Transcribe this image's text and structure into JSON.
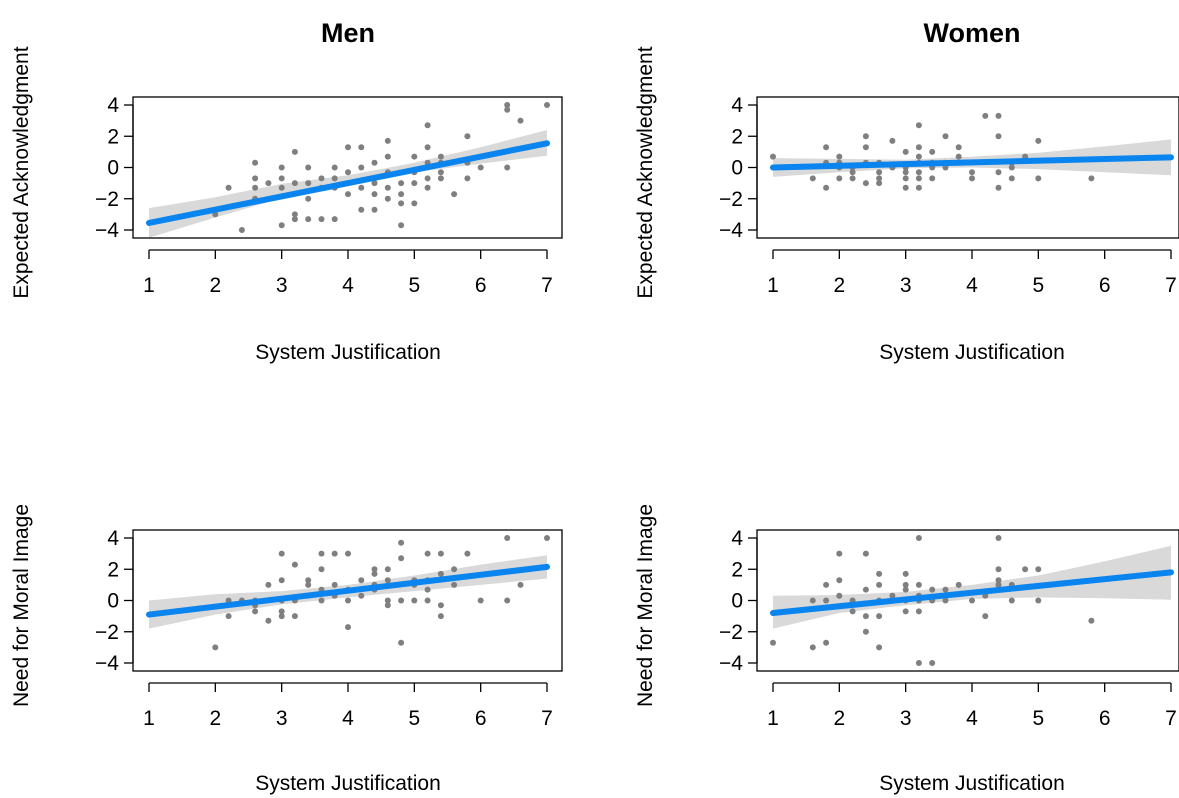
{
  "chart_data": [
    {
      "type": "scatter",
      "title": "Men",
      "xlabel": "System Justification",
      "ylabel": "Expected Acknowledgment",
      "xlim": [
        1,
        7
      ],
      "ylim": [
        -4,
        4
      ],
      "xticks": [
        1,
        2,
        3,
        4,
        5,
        6,
        7
      ],
      "yticks": [
        -4,
        -2,
        0,
        2,
        4
      ],
      "fit": {
        "x": [
          1,
          7
        ],
        "y": [
          -3.55,
          1.55
        ]
      },
      "band": {
        "x": [
          1,
          2,
          3,
          4,
          5,
          6,
          7
        ],
        "lower": [
          -4.5,
          -3.2,
          -1.95,
          -1.05,
          -0.3,
          0.25,
          0.75
        ],
        "upper": [
          -2.6,
          -1.9,
          -1.05,
          -0.5,
          0.3,
          1.3,
          2.4
        ]
      },
      "points": [
        [
          2,
          -3
        ],
        [
          2.2,
          -1.3
        ],
        [
          2.4,
          -4
        ],
        [
          2.6,
          -1.3
        ],
        [
          2.6,
          -2
        ],
        [
          2.6,
          -0.7
        ],
        [
          2.6,
          0.3
        ],
        [
          2.8,
          -1
        ],
        [
          3,
          -1.3
        ],
        [
          3,
          -0.7
        ],
        [
          3,
          0
        ],
        [
          3,
          -3.7
        ],
        [
          3.2,
          -3
        ],
        [
          3.2,
          -3.3
        ],
        [
          3.2,
          -1
        ],
        [
          3.2,
          1
        ],
        [
          3.4,
          -2
        ],
        [
          3.4,
          -1
        ],
        [
          3.4,
          0
        ],
        [
          3.4,
          -3.3
        ],
        [
          3.6,
          -0.7
        ],
        [
          3.6,
          -1.3
        ],
        [
          3.6,
          -3.3
        ],
        [
          3.8,
          -1.3
        ],
        [
          3.8,
          -0.7
        ],
        [
          3.8,
          0
        ],
        [
          3.8,
          -3.3
        ],
        [
          4,
          -1
        ],
        [
          4,
          -1.7
        ],
        [
          4,
          -0.3
        ],
        [
          4,
          1.3
        ],
        [
          4.2,
          -1.3
        ],
        [
          4.2,
          -2.7
        ],
        [
          4.2,
          0
        ],
        [
          4.2,
          1.3
        ],
        [
          4.4,
          -1
        ],
        [
          4.4,
          -0.7
        ],
        [
          4.4,
          -2.7
        ],
        [
          4.4,
          -1.7
        ],
        [
          4.4,
          0.3
        ],
        [
          4.6,
          -1.3
        ],
        [
          4.6,
          -2
        ],
        [
          4.6,
          -0.3
        ],
        [
          4.6,
          0.7
        ],
        [
          4.6,
          1.7
        ],
        [
          4.8,
          -1
        ],
        [
          4.8,
          -1.7
        ],
        [
          4.8,
          -2.3
        ],
        [
          4.8,
          -3.7
        ],
        [
          5,
          -0.3
        ],
        [
          5,
          -1
        ],
        [
          5,
          -2.3
        ],
        [
          5,
          0.7
        ],
        [
          5.2,
          -1.3
        ],
        [
          5.2,
          -0.7
        ],
        [
          5.2,
          0.3
        ],
        [
          5.2,
          1.3
        ],
        [
          5.2,
          2.7
        ],
        [
          5.4,
          0.3
        ],
        [
          5.4,
          0.7
        ],
        [
          5.4,
          -0.3
        ],
        [
          5.4,
          -0.7
        ],
        [
          5.6,
          -1.7
        ],
        [
          5.8,
          0.3
        ],
        [
          5.8,
          2
        ],
        [
          5.8,
          -0.7
        ],
        [
          6,
          0
        ],
        [
          6.4,
          4
        ],
        [
          6.4,
          3.7
        ],
        [
          6.4,
          0
        ],
        [
          6.6,
          3
        ],
        [
          7,
          4
        ]
      ]
    },
    {
      "type": "scatter",
      "title": "Women",
      "xlabel": "System Justification",
      "ylabel": "Expected Acknowledgment",
      "xlim": [
        1,
        7
      ],
      "ylim": [
        -4,
        4
      ],
      "xticks": [
        1,
        2,
        3,
        4,
        5,
        6,
        7
      ],
      "yticks": [
        -4,
        -2,
        0,
        2,
        4
      ],
      "fit": {
        "x": [
          1,
          7
        ],
        "y": [
          0.0,
          0.65
        ]
      },
      "band": {
        "x": [
          1,
          2,
          3,
          4,
          5,
          6,
          7
        ],
        "lower": [
          -0.6,
          -0.3,
          -0.05,
          0.0,
          -0.1,
          -0.3,
          -0.5
        ],
        "upper": [
          0.6,
          0.55,
          0.5,
          0.7,
          0.95,
          1.35,
          1.8
        ]
      },
      "points": [
        [
          1,
          0.7
        ],
        [
          1.6,
          -0.7
        ],
        [
          1.8,
          0.3
        ],
        [
          1.8,
          -1.3
        ],
        [
          1.8,
          1.3
        ],
        [
          2,
          0
        ],
        [
          2,
          -0.7
        ],
        [
          2,
          0.3
        ],
        [
          2,
          0.7
        ],
        [
          2.2,
          -0.3
        ],
        [
          2.2,
          -0.7
        ],
        [
          2.2,
          0
        ],
        [
          2.4,
          -1
        ],
        [
          2.4,
          0.3
        ],
        [
          2.4,
          1.3
        ],
        [
          2.4,
          2
        ],
        [
          2.6,
          -1
        ],
        [
          2.6,
          -0.3
        ],
        [
          2.6,
          0.3
        ],
        [
          2.6,
          -0.7
        ],
        [
          2.8,
          0
        ],
        [
          2.8,
          1.7
        ],
        [
          3,
          0
        ],
        [
          3,
          1
        ],
        [
          3,
          -0.3
        ],
        [
          3,
          -0.7
        ],
        [
          3,
          -1.3
        ],
        [
          3.2,
          0.3
        ],
        [
          3.2,
          0.7
        ],
        [
          3.2,
          1.3
        ],
        [
          3.2,
          -0.3
        ],
        [
          3.2,
          -1.3
        ],
        [
          3.2,
          2.7
        ],
        [
          3.2,
          -0.7
        ],
        [
          3.4,
          0
        ],
        [
          3.4,
          0.3
        ],
        [
          3.4,
          -0.7
        ],
        [
          3.4,
          1
        ],
        [
          3.6,
          2
        ],
        [
          3.6,
          0.3
        ],
        [
          3.6,
          0
        ],
        [
          3.8,
          0.7
        ],
        [
          3.8,
          1.3
        ],
        [
          4,
          -0.3
        ],
        [
          4,
          -0.7
        ],
        [
          4.2,
          3.3
        ],
        [
          4.4,
          3.3
        ],
        [
          4.4,
          2
        ],
        [
          4.4,
          -0.3
        ],
        [
          4.4,
          -1.3
        ],
        [
          4.6,
          0
        ],
        [
          4.6,
          -0.7
        ],
        [
          4.6,
          0.3
        ],
        [
          4.8,
          0.7
        ],
        [
          5,
          1.7
        ],
        [
          5,
          -0.7
        ],
        [
          5.8,
          -0.7
        ]
      ]
    },
    {
      "type": "scatter",
      "title": "",
      "xlabel": "System Justification",
      "ylabel": "Need for Moral Image",
      "xlim": [
        1,
        7
      ],
      "ylim": [
        -4,
        4
      ],
      "xticks": [
        1,
        2,
        3,
        4,
        5,
        6,
        7
      ],
      "yticks": [
        -4,
        -2,
        0,
        2,
        4
      ],
      "fit": {
        "x": [
          1,
          7
        ],
        "y": [
          -0.9,
          2.15
        ]
      },
      "band": {
        "x": [
          1,
          2,
          3,
          4,
          5,
          6,
          7
        ],
        "lower": [
          -1.8,
          -0.9,
          -0.25,
          0.2,
          0.6,
          1.0,
          1.4
        ],
        "upper": [
          0.0,
          0.4,
          0.6,
          1.0,
          1.6,
          2.3,
          2.9
        ]
      },
      "points": [
        [
          2,
          -3
        ],
        [
          2.2,
          0
        ],
        [
          2.2,
          -1
        ],
        [
          2.4,
          0
        ],
        [
          2.6,
          0
        ],
        [
          2.6,
          -0.3
        ],
        [
          2.6,
          -0.7
        ],
        [
          2.8,
          -1.3
        ],
        [
          2.8,
          1
        ],
        [
          3,
          0
        ],
        [
          3,
          -0.7
        ],
        [
          3,
          -1
        ],
        [
          3,
          1.3
        ],
        [
          3,
          3
        ],
        [
          3.2,
          0
        ],
        [
          3.2,
          -1
        ],
        [
          3.2,
          2.3
        ],
        [
          3.4,
          1.3
        ],
        [
          3.4,
          0.3
        ],
        [
          3.4,
          1
        ],
        [
          3.6,
          0
        ],
        [
          3.6,
          0.7
        ],
        [
          3.6,
          2
        ],
        [
          3.6,
          3
        ],
        [
          3.8,
          0.3
        ],
        [
          3.8,
          1
        ],
        [
          3.8,
          3
        ],
        [
          4,
          0.7
        ],
        [
          4,
          3
        ],
        [
          4,
          -1.7
        ],
        [
          4,
          0
        ],
        [
          4.2,
          0.3
        ],
        [
          4.2,
          1.3
        ],
        [
          4.4,
          1
        ],
        [
          4.4,
          0.7
        ],
        [
          4.4,
          2
        ],
        [
          4.4,
          1.7
        ],
        [
          4.6,
          0
        ],
        [
          4.6,
          -0.3
        ],
        [
          4.6,
          2
        ],
        [
          4.6,
          1.3
        ],
        [
          4.8,
          0
        ],
        [
          4.8,
          3.7
        ],
        [
          4.8,
          2.7
        ],
        [
          4.8,
          -2.7
        ],
        [
          5,
          1
        ],
        [
          5,
          0
        ],
        [
          5,
          1.3
        ],
        [
          5.2,
          3
        ],
        [
          5.2,
          1.3
        ],
        [
          5.2,
          0.7
        ],
        [
          5.2,
          0
        ],
        [
          5.4,
          3
        ],
        [
          5.4,
          1.7
        ],
        [
          5.4,
          -0.3
        ],
        [
          5.4,
          -1
        ],
        [
          5.6,
          2
        ],
        [
          5.6,
          1
        ],
        [
          5.8,
          3
        ],
        [
          6,
          0
        ],
        [
          6.4,
          0
        ],
        [
          6.4,
          4
        ],
        [
          6.6,
          1
        ],
        [
          7,
          4
        ]
      ]
    },
    {
      "type": "scatter",
      "title": "",
      "xlabel": "System Justification",
      "ylabel": "Need for Moral Image",
      "xlim": [
        1,
        7
      ],
      "ylim": [
        -4,
        4
      ],
      "xticks": [
        1,
        2,
        3,
        4,
        5,
        6,
        7
      ],
      "yticks": [
        -4,
        -2,
        0,
        2,
        4
      ],
      "fit": {
        "x": [
          1,
          7
        ],
        "y": [
          -0.8,
          1.8
        ]
      },
      "band": {
        "x": [
          1,
          2,
          3,
          4,
          5,
          6,
          7
        ],
        "lower": [
          -1.8,
          -0.8,
          -0.3,
          0.1,
          0.2,
          0.15,
          0.05
        ],
        "upper": [
          0.3,
          0.35,
          0.55,
          1.0,
          1.6,
          2.5,
          3.5
        ]
      },
      "points": [
        [
          1,
          -2.7
        ],
        [
          1.6,
          0
        ],
        [
          1.6,
          -3
        ],
        [
          1.8,
          -2.7
        ],
        [
          1.8,
          1
        ],
        [
          1.8,
          0
        ],
        [
          2,
          3
        ],
        [
          2,
          1.3
        ],
        [
          2,
          0.3
        ],
        [
          2.2,
          0
        ],
        [
          2.2,
          -0.7
        ],
        [
          2.4,
          3
        ],
        [
          2.4,
          0.7
        ],
        [
          2.4,
          -1
        ],
        [
          2.4,
          -2
        ],
        [
          2.6,
          1.7
        ],
        [
          2.6,
          1
        ],
        [
          2.6,
          0
        ],
        [
          2.6,
          -1
        ],
        [
          2.6,
          -3
        ],
        [
          2.8,
          0.3
        ],
        [
          2.8,
          0
        ],
        [
          3,
          1.7
        ],
        [
          3,
          1
        ],
        [
          3,
          0.7
        ],
        [
          3,
          0
        ],
        [
          3,
          -0.7
        ],
        [
          3.2,
          1
        ],
        [
          3.2,
          0.3
        ],
        [
          3.2,
          0
        ],
        [
          3.2,
          -0.7
        ],
        [
          3.2,
          -4
        ],
        [
          3.2,
          4
        ],
        [
          3.4,
          0.7
        ],
        [
          3.4,
          0
        ],
        [
          3.4,
          -4
        ],
        [
          3.6,
          0.7
        ],
        [
          3.6,
          0
        ],
        [
          3.8,
          1
        ],
        [
          4,
          0
        ],
        [
          4.2,
          0.3
        ],
        [
          4.2,
          -1
        ],
        [
          4.4,
          4
        ],
        [
          4.4,
          2
        ],
        [
          4.4,
          1.3
        ],
        [
          4.4,
          1
        ],
        [
          4.4,
          0.7
        ],
        [
          4.6,
          0
        ],
        [
          4.6,
          1
        ],
        [
          4.8,
          2
        ],
        [
          5,
          2
        ],
        [
          5,
          0
        ],
        [
          5.8,
          -1.3
        ]
      ]
    }
  ]
}
